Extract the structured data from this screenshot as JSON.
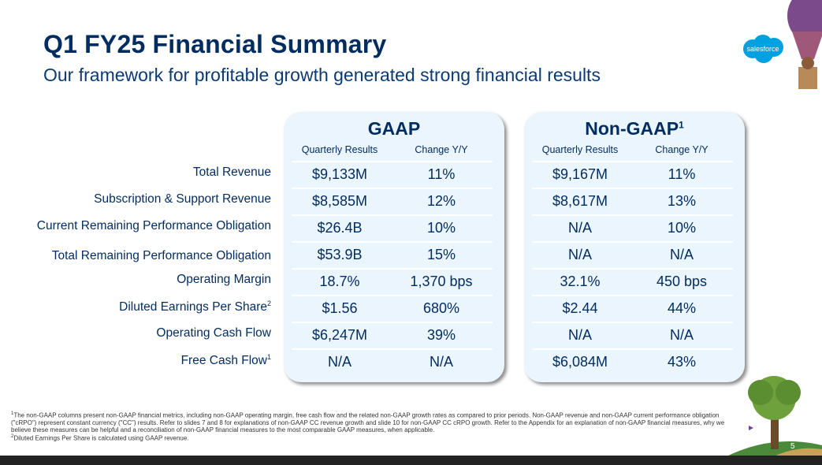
{
  "title": "Q1 FY25 Financial Summary",
  "subtitle": "Our framework for profitable growth generated strong financial results",
  "logo_text": "salesforce",
  "gaap": {
    "title": "GAAP",
    "col1": "Quarterly Results",
    "col2": "Change Y/Y"
  },
  "nongaap": {
    "title": "Non-GAAP",
    "sup": "1",
    "col1": "Quarterly Results",
    "col2": "Change Y/Y"
  },
  "rows": [
    {
      "label": "Total Revenue",
      "sup": "",
      "g1": "$9,133M",
      "g2": "11%",
      "n1": "$9,167M",
      "n2": "11%"
    },
    {
      "label": "Subscription & Support Revenue",
      "sup": "",
      "g1": "$8,585M",
      "g2": "12%",
      "n1": "$8,617M",
      "n2": "13%"
    },
    {
      "label": "Current Remaining Performance Obligation",
      "sup": "",
      "g1": "$26.4B",
      "g2": "10%",
      "n1": "N/A",
      "n2": "10%"
    },
    {
      "label": "Total Remaining Performance Obligation",
      "sup": "",
      "g1": "$53.9B",
      "g2": "15%",
      "n1": "N/A",
      "n2": "N/A"
    },
    {
      "label": "Operating Margin",
      "sup": "",
      "g1": "18.7%",
      "g2": "1,370 bps",
      "n1": "32.1%",
      "n2": "450 bps"
    },
    {
      "label": "Diluted Earnings Per Share",
      "sup": "2",
      "g1": "$1.56",
      "g2": "680%",
      "n1": "$2.44",
      "n2": "44%"
    },
    {
      "label": "Operating Cash Flow",
      "sup": "",
      "g1": "$6,247M",
      "g2": "39%",
      "n1": "N/A",
      "n2": "N/A"
    },
    {
      "label": "Free Cash Flow",
      "sup": "1",
      "g1": "N/A",
      "g2": "N/A",
      "n1": "$6,084M",
      "n2": "43%"
    }
  ],
  "footnotes": {
    "f1_mark": "1",
    "f1": "The non-GAAP columns present non-GAAP financial metrics, including non-GAAP operating margin, free cash flow and the related non-GAAP growth rates as compared to prior periods. Non-GAAP revenue and non-GAAP current performance obligation (\"cRPO\") represent constant currency (\"CC\") results. Refer to slides 7 and 8 for explanations of non-GAAP CC revenue growth and slide 10 for non-GAAP CC cRPO growth. Refer to the Appendix for an explanation of non-GAAP financial measures, why we believe these measures can be helpful and a reconciliation of non-GAAP financial measures to the most comparable GAAP measures, when applicable.",
    "f2_mark": "2",
    "f2": "Diluted Earnings Per Share is calculated using GAAP revenue."
  },
  "page_number": "5"
}
